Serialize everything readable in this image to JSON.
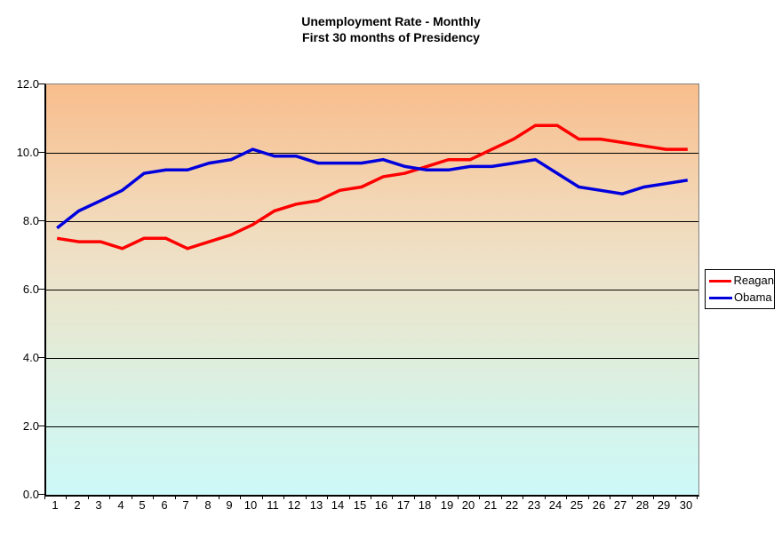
{
  "title_line1": "Unemployment Rate - Monthly",
  "title_line2": "First 30 months of Presidency",
  "legend": {
    "items": [
      {
        "label": "Reagan",
        "color": "#FF0000"
      },
      {
        "label": "Obama",
        "color": "#0000DD"
      }
    ]
  },
  "colors": {
    "reagan_line": "#FF0000",
    "obama_line": "#0000DD",
    "plot_border": "#808080",
    "axis": "#000000",
    "gridline": "#000000",
    "gradient_top": "#F8BD8C",
    "gradient_bottom": "#CDF9F8",
    "background": "#FFFFFF"
  },
  "chart_data": {
    "type": "line",
    "title": "Unemployment Rate - Monthly First 30 months of Presidency",
    "xlabel": "",
    "ylabel": "",
    "x": [
      1,
      2,
      3,
      4,
      5,
      6,
      7,
      8,
      9,
      10,
      11,
      12,
      13,
      14,
      15,
      16,
      17,
      18,
      19,
      20,
      21,
      22,
      23,
      24,
      25,
      26,
      27,
      28,
      29,
      30
    ],
    "series": [
      {
        "name": "Reagan",
        "color": "#FF0000",
        "values": [
          7.5,
          7.4,
          7.4,
          7.2,
          7.5,
          7.5,
          7.2,
          7.4,
          7.6,
          7.9,
          8.3,
          8.5,
          8.6,
          8.9,
          9.0,
          9.3,
          9.4,
          9.6,
          9.8,
          9.8,
          10.1,
          10.4,
          10.8,
          10.8,
          10.4,
          10.4,
          10.3,
          10.2,
          10.1,
          10.1
        ]
      },
      {
        "name": "Obama",
        "color": "#0000DD",
        "values": [
          7.8,
          8.3,
          8.6,
          8.9,
          9.4,
          9.5,
          9.5,
          9.7,
          9.8,
          10.1,
          9.9,
          9.9,
          9.7,
          9.7,
          9.7,
          9.8,
          9.6,
          9.5,
          9.5,
          9.6,
          9.6,
          9.7,
          9.8,
          9.4,
          9.0,
          8.9,
          8.8,
          9.0,
          9.1,
          9.2
        ]
      }
    ],
    "ylim": [
      0,
      12
    ],
    "ytick_values": [
      12,
      10,
      8,
      6,
      4,
      2,
      0
    ],
    "ytick_labels": [
      "12.0",
      "10.0",
      "8.0",
      "6.0",
      "4.0",
      "2.0",
      "0.0"
    ],
    "grid": true,
    "gridline_step": 2,
    "legend_position": "right"
  }
}
